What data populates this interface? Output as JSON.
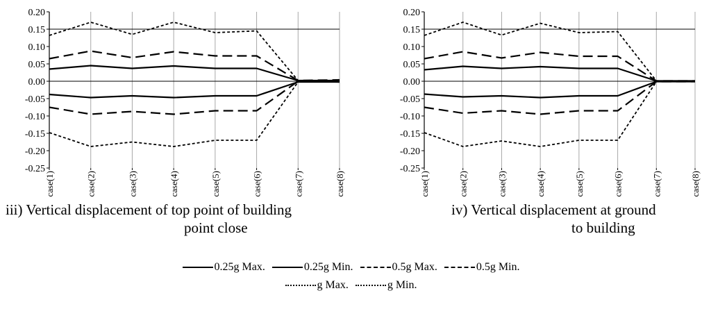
{
  "chart_data": [
    {
      "type": "line",
      "title": "",
      "categories": [
        "case(1)",
        "case(2)",
        "case(3)",
        "case(4)",
        "case(5)",
        "case(6)",
        "case(7)",
        "case(8)"
      ],
      "ylim": [
        -0.25,
        0.2
      ],
      "yticks": [
        "0.20",
        "0.15",
        "0.10",
        "0.05",
        "0.00",
        "-0.05",
        "-0.10",
        "-0.15",
        "-0.20",
        "-0.25"
      ],
      "reference_line": 0.15,
      "series": [
        {
          "name": "0.25g Max.",
          "style": "solid",
          "values": [
            0.035,
            0.045,
            0.037,
            0.044,
            0.037,
            0.037,
            0.002,
            0.002
          ]
        },
        {
          "name": "0.25g Min.",
          "style": "solid",
          "values": [
            -0.038,
            -0.047,
            -0.042,
            -0.047,
            -0.042,
            -0.042,
            -0.002,
            -0.002
          ]
        },
        {
          "name": "0.5g Max.",
          "style": "dashed",
          "values": [
            0.065,
            0.087,
            0.068,
            0.085,
            0.073,
            0.073,
            0.002,
            0.004
          ]
        },
        {
          "name": "0.5g Min.",
          "style": "dashed",
          "values": [
            -0.075,
            -0.095,
            -0.087,
            -0.095,
            -0.085,
            -0.085,
            0.0,
            -0.002
          ]
        },
        {
          "name": "g Max.",
          "style": "dotted",
          "values": [
            0.132,
            0.17,
            0.135,
            0.17,
            0.14,
            0.145,
            0.002,
            0.002
          ]
        },
        {
          "name": "g Min.",
          "style": "dotted",
          "values": [
            -0.148,
            -0.188,
            -0.175,
            -0.188,
            -0.17,
            -0.17,
            -0.002,
            -0.002
          ]
        }
      ]
    },
    {
      "type": "line",
      "title": "",
      "categories": [
        "case(1)",
        "case(2)",
        "case(3)",
        "case(4)",
        "case(5)",
        "case(6)",
        "case(7)",
        "case(8)"
      ],
      "ylim": [
        -0.25,
        0.2
      ],
      "yticks": [
        "0.20",
        "0.15",
        "0.10",
        "0.05",
        "0.00",
        "-0.05",
        "-0.10",
        "-0.15",
        "-0.20",
        "-0.25"
      ],
      "reference_line": 0.15,
      "series": [
        {
          "name": "0.25g Max.",
          "style": "solid",
          "values": [
            0.033,
            0.043,
            0.037,
            0.042,
            0.037,
            0.037,
            0.001,
            0.001
          ]
        },
        {
          "name": "0.25g Min.",
          "style": "solid",
          "values": [
            -0.037,
            -0.045,
            -0.042,
            -0.047,
            -0.042,
            -0.042,
            -0.001,
            -0.001
          ]
        },
        {
          "name": "0.5g Max.",
          "style": "dashed",
          "values": [
            0.065,
            0.085,
            0.067,
            0.083,
            0.072,
            0.072,
            0.001,
            0.001
          ]
        },
        {
          "name": "0.5g Min.",
          "style": "dashed",
          "values": [
            -0.075,
            -0.092,
            -0.085,
            -0.095,
            -0.085,
            -0.085,
            -0.001,
            -0.001
          ]
        },
        {
          "name": "g Max.",
          "style": "dotted",
          "values": [
            0.132,
            0.17,
            0.133,
            0.167,
            0.14,
            0.143,
            0.001,
            0.001
          ]
        },
        {
          "name": "g Min.",
          "style": "dotted",
          "values": [
            -0.148,
            -0.188,
            -0.172,
            -0.188,
            -0.17,
            -0.17,
            -0.001,
            -0.001
          ]
        }
      ]
    }
  ],
  "captions": {
    "left": {
      "line1": "iii) Vertical displacement of top point of building",
      "line2": "point close"
    },
    "right": {
      "line1": "iv) Vertical displacement at ground",
      "line2": "to building"
    }
  },
  "legend": {
    "row1": [
      "0.25g Max.",
      "0.25g Min.",
      "0.5g Max.",
      "0.5g Min."
    ],
    "row2": [
      "g Max.",
      "g Min."
    ]
  }
}
